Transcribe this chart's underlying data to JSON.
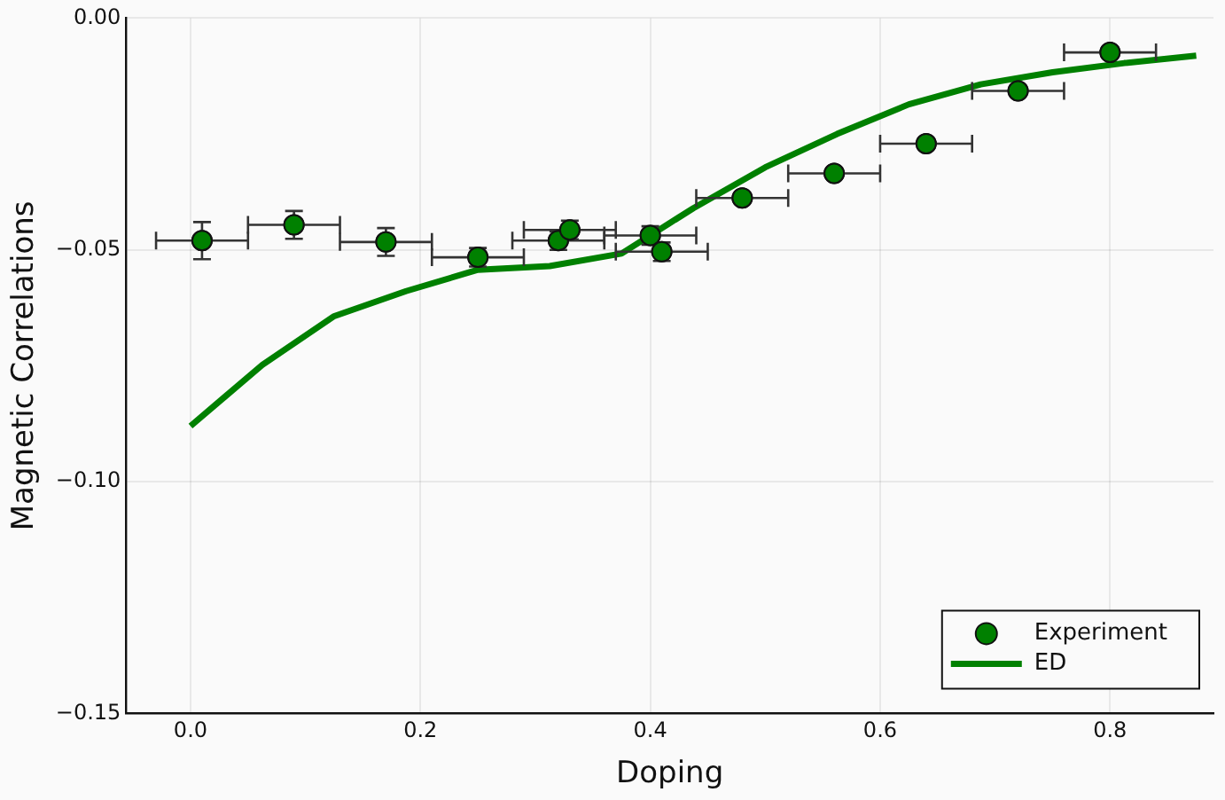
{
  "chart_data": {
    "type": "scatter",
    "xlabel": "Doping",
    "ylabel": "Magnetic Correlations",
    "xlim": [
      -0.056,
      0.89
    ],
    "xticks": [
      {
        "value": 0,
        "label": "0.0"
      },
      0.2,
      0.4,
      0.6,
      0.8
    ],
    "ylim": [
      -0.15,
      0
    ],
    "yticks": [
      {
        "value": -0.15,
        "label": "−0.15"
      },
      {
        "value": -0.1,
        "label": "−0.10"
      },
      {
        "value": -0.05,
        "label": "−0.05"
      },
      {
        "value": 0,
        "label": "0.00"
      }
    ],
    "grid": true,
    "legend": "bottom right",
    "series": [
      {
        "name": "Experiment",
        "type": "scatter",
        "color": "#008000",
        "marker": "circle",
        "x": [
          0.01,
          0.09,
          0.17,
          0.25,
          0.32,
          0.33,
          0.4,
          0.41,
          0.48,
          0.56,
          0.64,
          0.72,
          0.8
        ],
        "values": [
          -0.048,
          -0.0446,
          -0.0483,
          -0.0516,
          -0.048,
          -0.0457,
          -0.0469,
          -0.0504,
          -0.0388,
          -0.0335,
          -0.0271,
          -0.0157,
          -0.0074
        ],
        "errors": [
          0.004,
          0.003,
          0.003,
          0.002,
          0.002,
          0.002,
          0.002,
          0.002,
          null,
          null,
          null,
          null,
          null
        ],
        "xerrors": [
          0.04,
          0.04,
          0.04,
          0.04,
          0.04,
          0.04,
          0.04,
          0.04,
          0.04,
          0.04,
          0.04,
          0.04,
          0.04
        ]
      },
      {
        "name": "ED",
        "type": "line",
        "color": "#008000",
        "marker": "none",
        "line_style": "solid",
        "x": [
          0,
          0.0625,
          0.125,
          0.1875,
          0.25,
          0.3125,
          0.375,
          0.4375,
          0.5,
          0.5625,
          0.625,
          0.6875,
          0.75,
          0.8125,
          0.875
        ],
        "values": [
          -0.088,
          -0.0748,
          -0.0643,
          -0.0589,
          -0.0543,
          -0.0535,
          -0.0508,
          -0.041,
          -0.0322,
          -0.025,
          -0.0186,
          -0.0143,
          -0.0117,
          -0.0097,
          -0.0081
        ]
      }
    ]
  }
}
